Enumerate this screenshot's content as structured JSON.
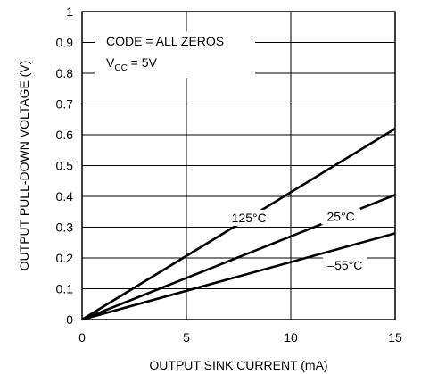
{
  "chart_data": {
    "type": "line",
    "xlabel": "OUTPUT SINK CURRENT (mA)",
    "ylabel": "OUTPUT PULL-DOWN VOLTAGE (V)",
    "xlim": [
      0,
      15
    ],
    "ylim": [
      0,
      1
    ],
    "x_ticks": [
      "0",
      "5",
      "10",
      "15"
    ],
    "y_ticks": [
      "0",
      "0.1",
      "0.2",
      "0.3",
      "0.4",
      "0.5",
      "0.6",
      "0.7",
      "0.8",
      "0.9",
      "1"
    ],
    "grid": true,
    "annotation": {
      "line1": "CODE = ALL ZEROS",
      "line2_main": "V",
      "line2_sub": "CC",
      "line2_rest": " = 5V"
    },
    "series": [
      {
        "name": "125°C",
        "x": [
          0,
          15
        ],
        "y": [
          0,
          0.62
        ]
      },
      {
        "name": "25°C",
        "x": [
          0,
          15
        ],
        "y": [
          0,
          0.405
        ]
      },
      {
        "name": "–55°C",
        "x": [
          0,
          15
        ],
        "y": [
          0,
          0.28
        ]
      }
    ]
  }
}
